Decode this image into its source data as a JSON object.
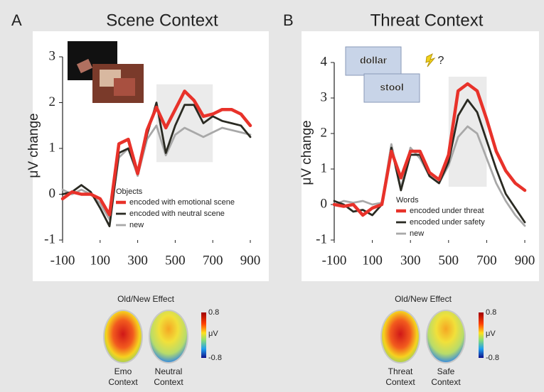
{
  "chart_data": [
    {
      "type": "line",
      "panel_label": "A",
      "title": "Scene Context",
      "ylabel": "μV change",
      "x": [
        -100,
        -50,
        0,
        50,
        100,
        150,
        200,
        250,
        300,
        350,
        400,
        450,
        500,
        550,
        600,
        650,
        700,
        750,
        800,
        850,
        900
      ],
      "xlim": [
        -100,
        900
      ],
      "xticks": [
        -100,
        100,
        300,
        500,
        700,
        900
      ],
      "ylim": [
        -1,
        3
      ],
      "yticks": [
        -1,
        0,
        1,
        2,
        3
      ],
      "highlight": {
        "xlim": [
          400,
          700
        ],
        "ylim": [
          0.7,
          2.4
        ]
      },
      "legend_title": "Objects",
      "series": [
        {
          "name": "encoded with emotional scene",
          "color": "#e8322a",
          "values": [
            -0.1,
            0.05,
            0.0,
            0.0,
            -0.1,
            -0.45,
            1.1,
            1.2,
            0.45,
            1.4,
            1.9,
            1.45,
            1.85,
            2.25,
            2.05,
            1.7,
            1.75,
            1.85,
            1.85,
            1.75,
            1.5
          ]
        },
        {
          "name": "encoded with neutral scene",
          "color": "#2a2a22",
          "values": [
            0.0,
            0.05,
            0.2,
            0.05,
            -0.3,
            -0.7,
            0.9,
            1.0,
            0.45,
            1.3,
            2.0,
            0.9,
            1.5,
            1.95,
            1.95,
            1.55,
            1.7,
            1.6,
            1.55,
            1.5,
            1.25
          ]
        },
        {
          "name": "new",
          "color": "#a8a8a8",
          "values": [
            0.1,
            0.0,
            0.1,
            0.0,
            -0.2,
            -0.55,
            0.8,
            1.0,
            0.4,
            1.2,
            1.5,
            0.85,
            1.3,
            1.45,
            1.35,
            1.25,
            1.35,
            1.45,
            1.4,
            1.35,
            1.3
          ]
        }
      ],
      "topomap": {
        "title": "Old/New Effect",
        "colorbar": {
          "ticks": [
            0.8,
            -0.8
          ],
          "label": "μV"
        },
        "labels": [
          [
            "Emo",
            "Context"
          ],
          [
            "Neutral",
            "Context"
          ]
        ]
      }
    },
    {
      "type": "line",
      "panel_label": "B",
      "title": "Threat Context",
      "ylabel": "μV change",
      "x": [
        -100,
        -50,
        0,
        50,
        100,
        150,
        200,
        250,
        300,
        350,
        400,
        450,
        500,
        550,
        600,
        650,
        700,
        750,
        800,
        850,
        900
      ],
      "xlim": [
        -100,
        900
      ],
      "xticks": [
        -100,
        100,
        300,
        500,
        700,
        900
      ],
      "ylim": [
        -1,
        4
      ],
      "yticks": [
        -1,
        0,
        1,
        2,
        3,
        4
      ],
      "highlight": {
        "xlim": [
          500,
          700
        ],
        "ylim": [
          0.5,
          3.6
        ]
      },
      "legend_title": "Words",
      "inset_words": [
        "dollar",
        "stool",
        "?"
      ],
      "series": [
        {
          "name": "encoded under threat",
          "color": "#e8322a",
          "values": [
            0.0,
            -0.05,
            0.0,
            -0.3,
            -0.1,
            0.0,
            1.5,
            0.75,
            1.5,
            1.5,
            0.9,
            0.7,
            1.4,
            3.2,
            3.4,
            3.2,
            2.4,
            1.5,
            0.95,
            0.6,
            0.4
          ]
        },
        {
          "name": "encoded under safety",
          "color": "#2a2a22",
          "values": [
            0.1,
            0.0,
            -0.2,
            -0.15,
            -0.3,
            0.0,
            1.6,
            0.4,
            1.4,
            1.4,
            0.8,
            0.6,
            1.2,
            2.5,
            2.95,
            2.6,
            1.8,
            1.0,
            0.3,
            -0.1,
            -0.5
          ]
        },
        {
          "name": "new",
          "color": "#a8a8a8",
          "values": [
            0.0,
            0.1,
            0.05,
            0.1,
            0.0,
            0.05,
            1.7,
            0.45,
            1.6,
            1.3,
            0.8,
            0.6,
            1.1,
            1.9,
            2.2,
            2.0,
            1.3,
            0.6,
            0.1,
            -0.3,
            -0.6
          ]
        }
      ],
      "topomap": {
        "title": "Old/New Effect",
        "colorbar": {
          "ticks": [
            0.8,
            -0.8
          ],
          "label": "μV"
        },
        "labels": [
          [
            "Threat",
            "Context"
          ],
          [
            "Safe",
            "Context"
          ]
        ]
      }
    }
  ]
}
